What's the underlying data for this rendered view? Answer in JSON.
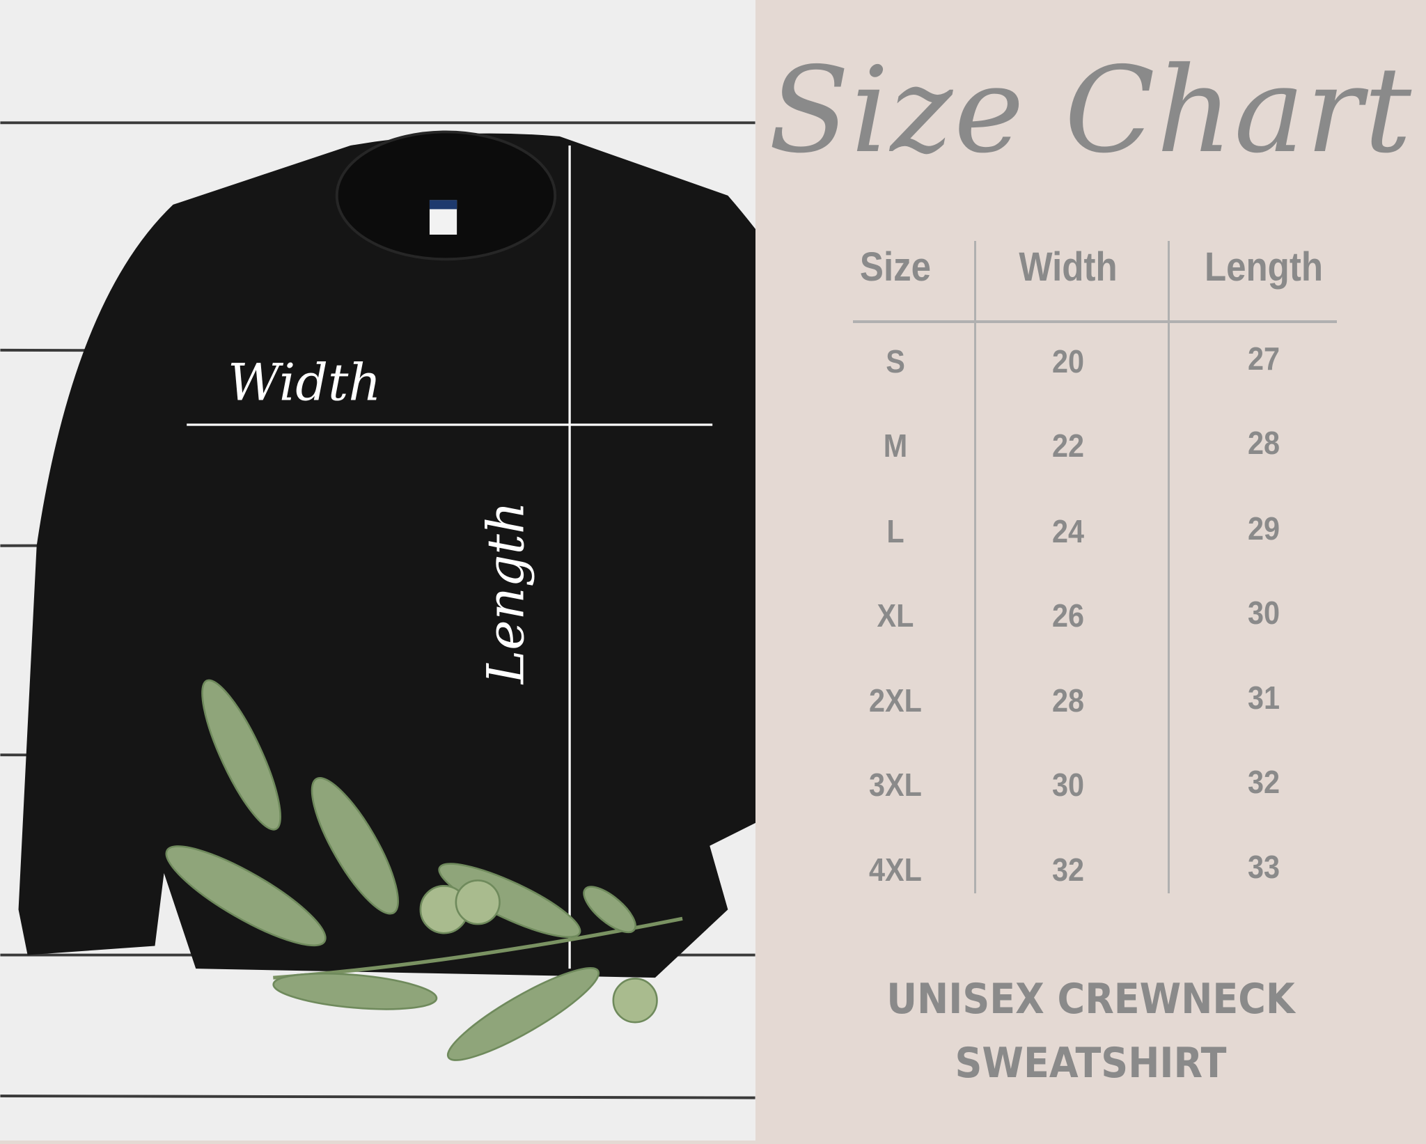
{
  "title": "Size Chart",
  "garment_labels": {
    "width": "Width",
    "length": "Length"
  },
  "table": {
    "headers": [
      "Size",
      "Width",
      "Length"
    ],
    "rows": [
      [
        "S",
        "20",
        "27"
      ],
      [
        "M",
        "22",
        "28"
      ],
      [
        "L",
        "24",
        "29"
      ],
      [
        "XL",
        "26",
        "30"
      ],
      [
        "2XL",
        "28",
        "31"
      ],
      [
        "3XL",
        "30",
        "32"
      ],
      [
        "4XL",
        "32",
        "33"
      ]
    ]
  },
  "footer": {
    "line1": "UNISEX CREWNECK",
    "line2": "SWEATSHIRT"
  },
  "colors": {
    "panel_bg": "#e4d9d3",
    "text": "#8a8a8a",
    "divider": "#b0b0b0",
    "sweatshirt": "#151515",
    "leaf": "#8fa57a"
  }
}
